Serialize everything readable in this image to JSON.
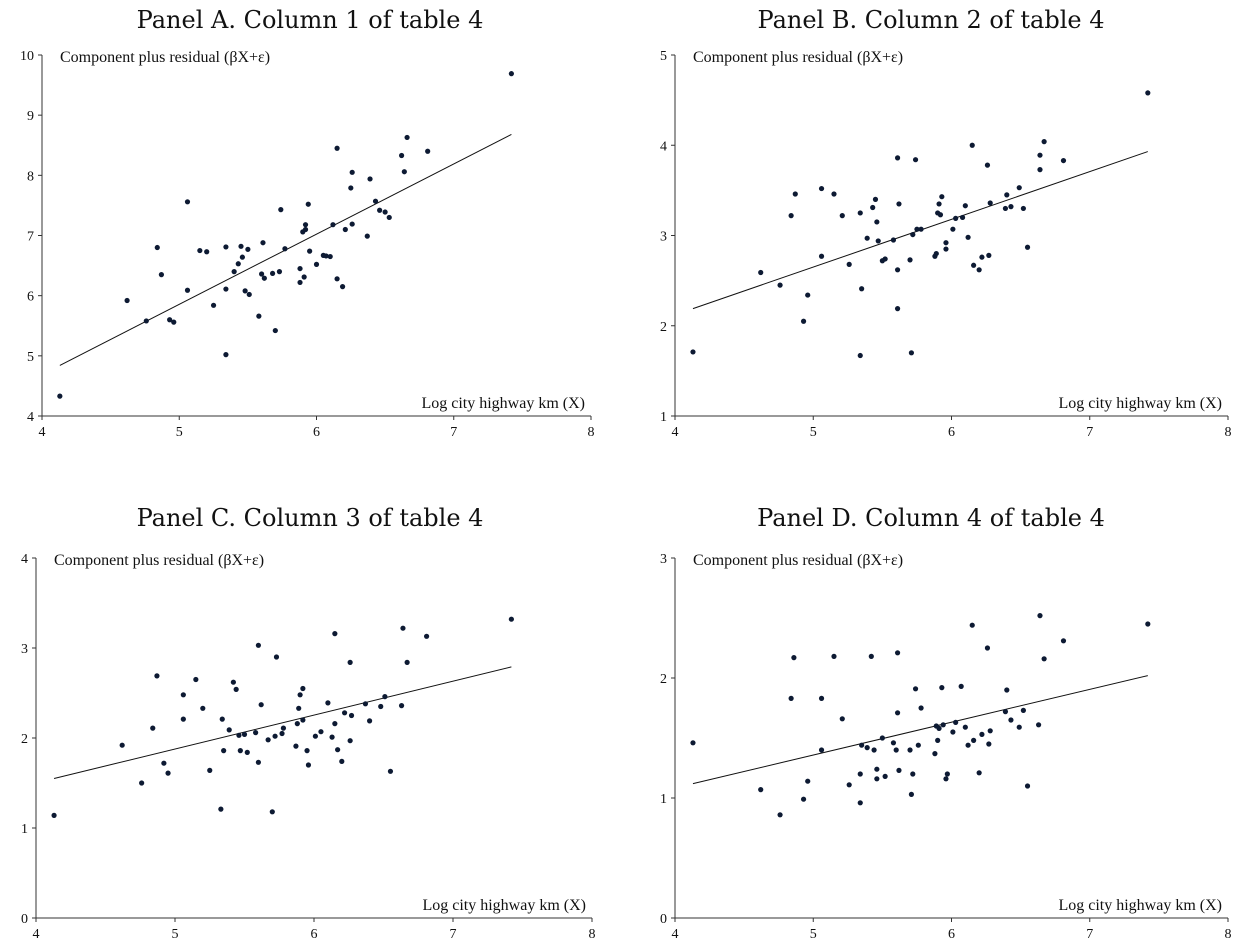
{
  "panels": [
    {
      "title": "Panel A. Column 1 of table 4",
      "chart_data": {
        "type": "scatter",
        "title": "Panel A. Column 1 of table 4",
        "ylabel": "Component plus residual (βX+ε)",
        "xlabel": "Log city highway km (X)",
        "xlim": [
          4,
          8
        ],
        "ylim": [
          4,
          10
        ],
        "xticks": [
          4,
          5,
          6,
          7,
          8
        ],
        "yticks": [
          4,
          5,
          6,
          7,
          8,
          9,
          10
        ],
        "grid": false,
        "fit_line": [
          [
            4.13,
            4.84
          ],
          [
            7.42,
            8.68
          ]
        ],
        "points": [
          [
            4.13,
            4.33
          ],
          [
            4.62,
            5.92
          ],
          [
            4.76,
            5.58
          ],
          [
            4.84,
            6.8
          ],
          [
            4.87,
            6.35
          ],
          [
            4.93,
            5.6
          ],
          [
            4.96,
            5.56
          ],
          [
            5.06,
            7.56
          ],
          [
            5.06,
            6.09
          ],
          [
            5.15,
            6.75
          ],
          [
            5.2,
            6.73
          ],
          [
            5.25,
            5.84
          ],
          [
            5.34,
            6.11
          ],
          [
            5.34,
            5.02
          ],
          [
            5.34,
            6.81
          ],
          [
            5.4,
            6.4
          ],
          [
            5.43,
            6.53
          ],
          [
            5.45,
            6.82
          ],
          [
            5.46,
            6.64
          ],
          [
            5.48,
            6.08
          ],
          [
            5.5,
            6.77
          ],
          [
            5.51,
            6.02
          ],
          [
            5.58,
            5.66
          ],
          [
            5.6,
            6.36
          ],
          [
            5.61,
            6.88
          ],
          [
            5.62,
            6.29
          ],
          [
            5.68,
            6.37
          ],
          [
            5.7,
            5.42
          ],
          [
            5.73,
            6.4
          ],
          [
            5.74,
            7.43
          ],
          [
            5.77,
            6.78
          ],
          [
            5.88,
            6.45
          ],
          [
            5.88,
            6.22
          ],
          [
            5.9,
            7.06
          ],
          [
            5.91,
            6.31
          ],
          [
            5.92,
            7.18
          ],
          [
            5.92,
            7.1
          ],
          [
            5.94,
            7.52
          ],
          [
            5.95,
            6.74
          ],
          [
            6.0,
            6.52
          ],
          [
            6.05,
            6.67
          ],
          [
            6.1,
            6.65
          ],
          [
            6.12,
            7.18
          ],
          [
            6.15,
            8.45
          ],
          [
            6.15,
            6.28
          ],
          [
            6.19,
            6.15
          ],
          [
            6.21,
            7.1
          ],
          [
            6.25,
            7.79
          ],
          [
            6.26,
            8.05
          ],
          [
            6.37,
            6.99
          ],
          [
            6.39,
            7.94
          ],
          [
            6.43,
            7.57
          ],
          [
            6.46,
            7.42
          ],
          [
            6.5,
            7.39
          ],
          [
            6.53,
            7.3
          ],
          [
            6.62,
            8.33
          ],
          [
            6.64,
            8.06
          ],
          [
            6.66,
            8.63
          ],
          [
            6.81,
            8.4
          ],
          [
            7.42,
            9.69
          ],
          [
            6.26,
            7.19
          ],
          [
            6.07,
            6.66
          ]
        ]
      }
    },
    {
      "title": "Panel B. Column 2 of table 4",
      "chart_data": {
        "type": "scatter",
        "title": "Panel B. Column 2 of table 4",
        "ylabel": "Component plus residual (βX+ε)",
        "xlabel": "Log city highway km (X)",
        "xlim": [
          4,
          8
        ],
        "ylim": [
          1,
          5
        ],
        "xticks": [
          4,
          5,
          6,
          7,
          8
        ],
        "yticks": [
          1,
          2,
          3,
          4,
          5
        ],
        "grid": false,
        "fit_line": [
          [
            4.13,
            2.19
          ],
          [
            7.42,
            3.93
          ]
        ],
        "points": [
          [
            4.13,
            1.71
          ],
          [
            4.62,
            2.59
          ],
          [
            4.76,
            2.45
          ],
          [
            4.84,
            3.22
          ],
          [
            4.87,
            3.46
          ],
          [
            4.93,
            2.05
          ],
          [
            4.96,
            2.34
          ],
          [
            5.06,
            3.52
          ],
          [
            5.06,
            2.77
          ],
          [
            5.15,
            3.46
          ],
          [
            5.21,
            3.22
          ],
          [
            5.26,
            2.68
          ],
          [
            5.34,
            3.25
          ],
          [
            5.34,
            1.67
          ],
          [
            5.35,
            2.41
          ],
          [
            5.39,
            2.97
          ],
          [
            5.43,
            3.31
          ],
          [
            5.45,
            3.4
          ],
          [
            5.46,
            3.15
          ],
          [
            5.47,
            2.94
          ],
          [
            5.5,
            2.72
          ],
          [
            5.52,
            2.74
          ],
          [
            5.58,
            2.95
          ],
          [
            5.61,
            3.86
          ],
          [
            5.61,
            2.62
          ],
          [
            5.61,
            2.19
          ],
          [
            5.62,
            3.35
          ],
          [
            5.7,
            2.73
          ],
          [
            5.71,
            1.7
          ],
          [
            5.72,
            3.01
          ],
          [
            5.74,
            3.84
          ],
          [
            5.75,
            3.07
          ],
          [
            5.78,
            3.07
          ],
          [
            5.88,
            2.77
          ],
          [
            5.89,
            2.8
          ],
          [
            5.9,
            3.25
          ],
          [
            5.91,
            3.35
          ],
          [
            5.92,
            3.23
          ],
          [
            5.93,
            3.43
          ],
          [
            5.96,
            2.92
          ],
          [
            5.96,
            2.85
          ],
          [
            6.01,
            3.07
          ],
          [
            6.03,
            3.19
          ],
          [
            6.08,
            3.2
          ],
          [
            6.1,
            3.33
          ],
          [
            6.12,
            2.98
          ],
          [
            6.15,
            4.0
          ],
          [
            6.16,
            2.67
          ],
          [
            6.2,
            2.62
          ],
          [
            6.22,
            2.76
          ],
          [
            6.26,
            3.78
          ],
          [
            6.27,
            2.78
          ],
          [
            6.28,
            3.36
          ],
          [
            6.39,
            3.3
          ],
          [
            6.4,
            3.45
          ],
          [
            6.43,
            3.32
          ],
          [
            6.49,
            3.53
          ],
          [
            6.52,
            3.3
          ],
          [
            6.55,
            2.87
          ],
          [
            6.64,
            3.73
          ],
          [
            6.64,
            3.89
          ],
          [
            6.67,
            4.04
          ],
          [
            6.81,
            3.83
          ],
          [
            7.42,
            4.58
          ]
        ]
      }
    },
    {
      "title": "Panel C. Column 3 of table 4",
      "chart_data": {
        "type": "scatter",
        "title": "Panel C. Column 3 of table 4",
        "ylabel": "Component plus residual (βX+ε)",
        "xlabel": "Log city highway km (X)",
        "xlim": [
          4,
          8
        ],
        "ylim": [
          0,
          4
        ],
        "xticks": [
          4,
          5,
          6,
          7,
          8
        ],
        "yticks": [
          0,
          1,
          2,
          3,
          4
        ],
        "grid": false,
        "fit_line": [
          [
            4.13,
            1.55
          ],
          [
            7.42,
            2.79
          ]
        ],
        "points": [
          [
            4.13,
            1.14
          ],
          [
            4.62,
            1.92
          ],
          [
            4.76,
            1.5
          ],
          [
            4.84,
            2.11
          ],
          [
            4.87,
            2.69
          ],
          [
            4.92,
            1.72
          ],
          [
            4.95,
            1.61
          ],
          [
            5.06,
            2.48
          ],
          [
            5.06,
            2.21
          ],
          [
            5.15,
            2.65
          ],
          [
            5.2,
            2.33
          ],
          [
            5.25,
            1.64
          ],
          [
            5.33,
            1.21
          ],
          [
            5.34,
            2.21
          ],
          [
            5.35,
            1.86
          ],
          [
            5.39,
            2.09
          ],
          [
            5.42,
            2.62
          ],
          [
            5.44,
            2.54
          ],
          [
            5.46,
            2.03
          ],
          [
            5.47,
            1.86
          ],
          [
            5.5,
            2.04
          ],
          [
            5.52,
            1.84
          ],
          [
            5.58,
            2.06
          ],
          [
            5.6,
            1.73
          ],
          [
            5.6,
            3.03
          ],
          [
            5.62,
            2.37
          ],
          [
            5.67,
            1.98
          ],
          [
            5.7,
            1.18
          ],
          [
            5.72,
            2.02
          ],
          [
            5.73,
            2.9
          ],
          [
            5.77,
            2.05
          ],
          [
            5.78,
            2.11
          ],
          [
            5.87,
            1.91
          ],
          [
            5.88,
            2.16
          ],
          [
            5.89,
            2.33
          ],
          [
            5.9,
            2.48
          ],
          [
            5.92,
            2.55
          ],
          [
            5.92,
            2.2
          ],
          [
            5.95,
            1.86
          ],
          [
            5.96,
            1.7
          ],
          [
            6.01,
            2.02
          ],
          [
            6.05,
            2.07
          ],
          [
            6.1,
            2.39
          ],
          [
            6.13,
            2.01
          ],
          [
            6.15,
            3.16
          ],
          [
            6.17,
            1.87
          ],
          [
            6.2,
            1.74
          ],
          [
            6.22,
            2.28
          ],
          [
            6.26,
            2.84
          ],
          [
            6.26,
            1.97
          ],
          [
            6.27,
            2.25
          ],
          [
            6.37,
            2.38
          ],
          [
            6.4,
            2.19
          ],
          [
            6.48,
            2.35
          ],
          [
            6.51,
            2.46
          ],
          [
            6.55,
            1.63
          ],
          [
            6.63,
            2.36
          ],
          [
            6.64,
            3.22
          ],
          [
            6.67,
            2.84
          ],
          [
            6.81,
            3.13
          ],
          [
            7.42,
            3.32
          ],
          [
            6.15,
            2.16
          ]
        ]
      }
    },
    {
      "title": "Panel D. Column 4 of table 4",
      "chart_data": {
        "type": "scatter",
        "title": "Panel D. Column 4 of table 4",
        "ylabel": "Component plus residual (βX+ε)",
        "xlabel": "Log city highway km (X)",
        "xlim": [
          4,
          8
        ],
        "ylim": [
          0,
          3
        ],
        "xticks": [
          4,
          5,
          6,
          7,
          8
        ],
        "yticks": [
          0,
          1,
          2,
          3
        ],
        "grid": false,
        "fit_line": [
          [
            4.13,
            1.12
          ],
          [
            7.42,
            2.02
          ]
        ],
        "points": [
          [
            4.13,
            1.46
          ],
          [
            4.62,
            1.07
          ],
          [
            4.76,
            0.86
          ],
          [
            4.84,
            1.83
          ],
          [
            4.86,
            2.17
          ],
          [
            4.93,
            0.99
          ],
          [
            4.96,
            1.14
          ],
          [
            5.06,
            1.83
          ],
          [
            5.06,
            1.4
          ],
          [
            5.15,
            2.18
          ],
          [
            5.21,
            1.66
          ],
          [
            5.26,
            1.11
          ],
          [
            5.34,
            0.96
          ],
          [
            5.34,
            1.2
          ],
          [
            5.35,
            1.44
          ],
          [
            5.39,
            1.42
          ],
          [
            5.42,
            2.18
          ],
          [
            5.44,
            1.4
          ],
          [
            5.46,
            1.24
          ],
          [
            5.46,
            1.16
          ],
          [
            5.5,
            1.5
          ],
          [
            5.52,
            1.18
          ],
          [
            5.58,
            1.46
          ],
          [
            5.6,
            1.4
          ],
          [
            5.61,
            2.21
          ],
          [
            5.61,
            1.71
          ],
          [
            5.62,
            1.23
          ],
          [
            5.7,
            1.4
          ],
          [
            5.71,
            1.03
          ],
          [
            5.72,
            1.2
          ],
          [
            5.74,
            1.91
          ],
          [
            5.76,
            1.44
          ],
          [
            5.78,
            1.75
          ],
          [
            5.88,
            1.37
          ],
          [
            5.89,
            1.6
          ],
          [
            5.9,
            1.48
          ],
          [
            5.91,
            1.58
          ],
          [
            5.93,
            1.92
          ],
          [
            5.94,
            1.61
          ],
          [
            5.96,
            1.16
          ],
          [
            5.97,
            1.2
          ],
          [
            6.01,
            1.55
          ],
          [
            6.03,
            1.63
          ],
          [
            6.07,
            1.93
          ],
          [
            6.1,
            1.59
          ],
          [
            6.12,
            1.44
          ],
          [
            6.15,
            2.44
          ],
          [
            6.16,
            1.48
          ],
          [
            6.2,
            1.21
          ],
          [
            6.22,
            1.53
          ],
          [
            6.26,
            2.25
          ],
          [
            6.27,
            1.45
          ],
          [
            6.28,
            1.56
          ],
          [
            6.39,
            1.72
          ],
          [
            6.4,
            1.9
          ],
          [
            6.43,
            1.65
          ],
          [
            6.49,
            1.59
          ],
          [
            6.52,
            1.73
          ],
          [
            6.55,
            1.1
          ],
          [
            6.63,
            1.61
          ],
          [
            6.64,
            2.52
          ],
          [
            6.67,
            2.16
          ],
          [
            6.81,
            2.31
          ],
          [
            7.42,
            2.45
          ]
        ]
      }
    }
  ]
}
